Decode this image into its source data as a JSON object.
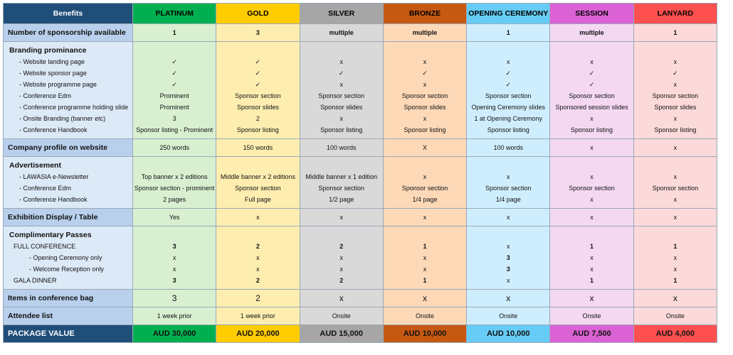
{
  "tiers": [
    {
      "name": "PLATINUM",
      "header_bg": "#00b050",
      "header_fg": "#000000",
      "cell_class": "c-p"
    },
    {
      "name": "GOLD",
      "header_bg": "#ffcc00",
      "header_fg": "#000000",
      "cell_class": "c-g"
    },
    {
      "name": "SILVER",
      "header_bg": "#a6a6a6",
      "header_fg": "#000000",
      "cell_class": "c-s"
    },
    {
      "name": "BRONZE",
      "header_bg": "#c65911",
      "header_fg": "#000000",
      "cell_class": "c-b"
    },
    {
      "name": "OPENING CEREMONY",
      "header_bg": "#66ccf5",
      "header_fg": "#000000",
      "cell_class": "c-o"
    },
    {
      "name": "SESSION",
      "header_bg": "#da62d4",
      "header_fg": "#000000",
      "cell_class": "c-se"
    },
    {
      "name": "LANYARD",
      "header_bg": "#ff5050",
      "header_fg": "#000000",
      "cell_class": "c-l"
    }
  ],
  "benefits_header": "Benefits",
  "rows": [
    {
      "title": "Number of sponsorship available",
      "title_only": true,
      "bold_values": true,
      "values": [
        [
          "1"
        ],
        [
          "3"
        ],
        [
          "multiple"
        ],
        [
          "multiple"
        ],
        [
          "1"
        ],
        [
          "multiple"
        ],
        [
          "1"
        ]
      ]
    },
    {
      "title": "Branding prominance",
      "sub": [
        "- Website landing page",
        "- Website sponsor page",
        "- Website programme page",
        "- Conference Edm",
        "- Conference programme holding slide",
        "- Onsite Branding (banner etc)",
        "- Conference Handbook"
      ],
      "values": [
        [
          "✓",
          "✓",
          "✓",
          "Prominent",
          "Prominent",
          "3",
          "Sponsor listing - Prominent"
        ],
        [
          "✓",
          "✓",
          "✓",
          "Sponsor section",
          "Sponsor slides",
          "2",
          "Sponsor listing"
        ],
        [
          "x",
          "✓",
          "x",
          "Sponsor section",
          "Sponsor slides",
          "x",
          "Sponsor listing"
        ],
        [
          "x",
          "✓",
          "x",
          "Sponsor section",
          "Sponsor slides",
          "x",
          "Sponsor listing"
        ],
        [
          "x",
          "✓",
          "✓",
          "Sponsor section",
          "Opening Ceremony  slides",
          "1 at Opening Ceremony",
          "Sponsor listing"
        ],
        [
          "x",
          "✓",
          "✓",
          "Sponsor section",
          "Sponsored session slides",
          "x",
          "Sponsor listing"
        ],
        [
          "x",
          "✓",
          "x",
          "Sponsor section",
          "Sponsor slides",
          "x",
          "Sponsor listing"
        ]
      ]
    },
    {
      "title": "Company profile on website",
      "title_only": true,
      "values": [
        [
          "250 words"
        ],
        [
          "150  words"
        ],
        [
          "100 words"
        ],
        [
          "X"
        ],
        [
          "100 words"
        ],
        [
          "x"
        ],
        [
          "x"
        ]
      ]
    },
    {
      "title": "Advertisement",
      "sub": [
        "- LAWASIA e-Newsletter",
        "- Conference Edm",
        "- Conference Handbook"
      ],
      "values": [
        [
          "Top banner x 2 editions",
          "Sponsor section - prominent",
          "2 pages"
        ],
        [
          "Middle banner x 2 editions",
          "Sponsor section",
          "Full page"
        ],
        [
          "Middle banner x 1 edition",
          "Sponsor section",
          "1/2 page"
        ],
        [
          "x",
          "Sponsor section",
          "1/4 page"
        ],
        [
          "x",
          "Sponsor section",
          "1/4 page"
        ],
        [
          "x",
          "Sponsor section",
          "x"
        ],
        [
          "x",
          "Sponsor section",
          "x"
        ]
      ]
    },
    {
      "title": "Exhibition Display / Table",
      "title_only": true,
      "values": [
        [
          "Yes"
        ],
        [
          "x"
        ],
        [
          "x"
        ],
        [
          "x"
        ],
        [
          "x"
        ],
        [
          "x"
        ],
        [
          "x"
        ]
      ]
    },
    {
      "title": "Complimentary Passes",
      "sub": [
        "FULL CONFERENCE",
        "- Opening Ceremony only",
        "- Welcome Reception only",
        "GALA DINNER"
      ],
      "values": [
        [
          "3",
          "x",
          "x",
          "3"
        ],
        [
          "2",
          "x",
          "x",
          "2"
        ],
        [
          "2",
          "x",
          "x",
          "2"
        ],
        [
          "1",
          "x",
          "x",
          "1"
        ],
        [
          "x",
          "3",
          "3",
          "x"
        ],
        [
          "1",
          "x",
          "x",
          "1"
        ],
        [
          "1",
          "x",
          "x",
          "1"
        ]
      ]
    },
    {
      "title": "Items in conference bag",
      "title_only": true,
      "big": true,
      "values": [
        [
          "3"
        ],
        [
          "2"
        ],
        [
          "x"
        ],
        [
          "x"
        ],
        [
          "x"
        ],
        [
          "x"
        ],
        [
          "x"
        ]
      ]
    },
    {
      "title": "Attendee list",
      "title_only": true,
      "values": [
        [
          "1 week prior"
        ],
        [
          "1 week prior"
        ],
        [
          "Onsite"
        ],
        [
          "Onsite"
        ],
        [
          "Onsite"
        ],
        [
          "Onsite"
        ],
        [
          "Onsite"
        ]
      ]
    }
  ],
  "package": {
    "label": "PACKAGE VALUE",
    "label_bg": "#1f4e79",
    "values": [
      "AUD 30,000",
      "AUD 20,000",
      "AUD 15,000",
      "AUD 10,000",
      "AUD 10,000",
      "AUD 7,500",
      "AUD 4,000"
    ]
  }
}
